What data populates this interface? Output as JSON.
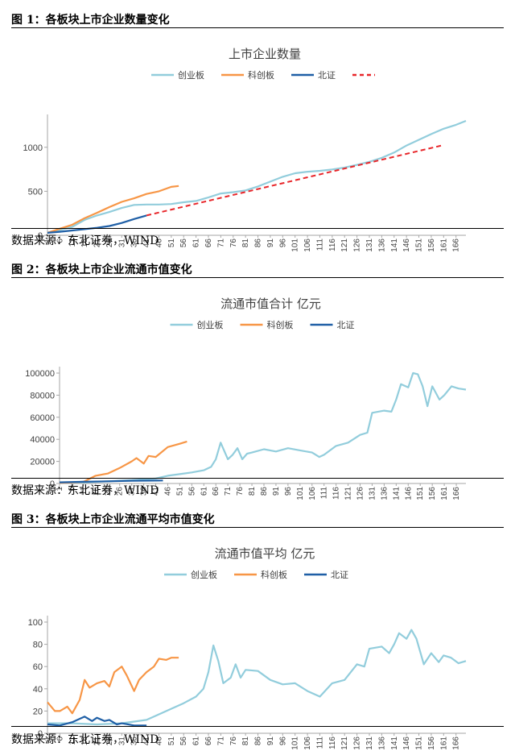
{
  "figures": [
    {
      "title": "图 1：各板块上市企业数量变化",
      "source": "数据来源：东北证券，WIND"
    },
    {
      "title": "图 2：各板块上市企业流通市值变化",
      "source": "数据来源：东北证券，WIND"
    },
    {
      "title": "图 3：各板块上市企业流通平均市值变化",
      "source": "数据来源：东北证券，WIND"
    }
  ],
  "chart_data": [
    {
      "type": "line",
      "title": "上市企业数量",
      "xticks": [
        "1",
        "6",
        "11",
        "16",
        "21",
        "26",
        "31",
        "36",
        "41",
        "46",
        "51",
        "56",
        "61",
        "66",
        "71",
        "76",
        "81",
        "86",
        "91",
        "96",
        "101",
        "106",
        "111",
        "116",
        "121",
        "126",
        "131",
        "136",
        "141",
        "146",
        "151",
        "156",
        "161",
        "166"
      ],
      "xlim": [
        1,
        170
      ],
      "ylim": [
        0,
        1300
      ],
      "yticks": [
        0,
        500,
        1000
      ],
      "grid": false,
      "legend": "top",
      "series": [
        {
          "name": "创业板",
          "color": "#92cddc",
          "dashed": false,
          "points": [
            [
              1,
              28
            ],
            [
              6,
              60
            ],
            [
              11,
              95
            ],
            [
              16,
              175
            ],
            [
              21,
              225
            ],
            [
              26,
              265
            ],
            [
              31,
              310
            ],
            [
              36,
              345
            ],
            [
              41,
              350
            ],
            [
              46,
              350
            ],
            [
              51,
              355
            ],
            [
              56,
              375
            ],
            [
              61,
              390
            ],
            [
              66,
              430
            ],
            [
              71,
              475
            ],
            [
              76,
              490
            ],
            [
              81,
              510
            ],
            [
              86,
              555
            ],
            [
              91,
              610
            ],
            [
              96,
              665
            ],
            [
              101,
              705
            ],
            [
              106,
              722
            ],
            [
              111,
              732
            ],
            [
              116,
              748
            ],
            [
              121,
              770
            ],
            [
              126,
              800
            ],
            [
              131,
              835
            ],
            [
              136,
              880
            ],
            [
              141,
              940
            ],
            [
              146,
              1020
            ],
            [
              151,
              1085
            ],
            [
              156,
              1150
            ],
            [
              161,
              1210
            ],
            [
              166,
              1255
            ],
            [
              170,
              1300
            ]
          ]
        },
        {
          "name": "科创板",
          "color": "#f79646",
          "dashed": false,
          "points": [
            [
              1,
              28
            ],
            [
              6,
              75
            ],
            [
              11,
              120
            ],
            [
              16,
              195
            ],
            [
              21,
              255
            ],
            [
              26,
              320
            ],
            [
              31,
              380
            ],
            [
              36,
              420
            ],
            [
              41,
              470
            ],
            [
              46,
              500
            ],
            [
              51,
              550
            ],
            [
              54,
              560
            ]
          ]
        },
        {
          "name": "北证",
          "color": "#1f5fa6",
          "dashed": false,
          "points": [
            [
              1,
              28
            ],
            [
              6,
              40
            ],
            [
              11,
              55
            ],
            [
              16,
              70
            ],
            [
              21,
              85
            ],
            [
              26,
              105
            ],
            [
              31,
              140
            ],
            [
              36,
              185
            ],
            [
              41,
              225
            ]
          ]
        },
        {
          "name": "",
          "color": "#e8262a",
          "dashed": true,
          "points": [
            [
              41,
              225
            ],
            [
              161,
              1025
            ]
          ]
        }
      ]
    },
    {
      "type": "line",
      "title": "流通市值合计 亿元",
      "xticks": [
        "1",
        "6",
        "11",
        "16",
        "21",
        "26",
        "31",
        "36",
        "41",
        "46",
        "51",
        "56",
        "61",
        "66",
        "71",
        "76",
        "81",
        "86",
        "91",
        "96",
        "101",
        "106",
        "111",
        "116",
        "121",
        "126",
        "131",
        "136",
        "141",
        "146",
        "151",
        "156",
        "161",
        "166"
      ],
      "xlim": [
        1,
        170
      ],
      "ylim": [
        0,
        100000
      ],
      "yticks": [
        0,
        20000,
        40000,
        60000,
        80000,
        100000
      ],
      "grid": false,
      "legend": "top",
      "series": [
        {
          "name": "创业板",
          "color": "#92cddc",
          "dashed": false,
          "points": [
            [
              1,
              500
            ],
            [
              11,
              1000
            ],
            [
              21,
              2000
            ],
            [
              31,
              3000
            ],
            [
              41,
              4500
            ],
            [
              46,
              7000
            ],
            [
              51,
              8500
            ],
            [
              56,
              10000
            ],
            [
              61,
              12000
            ],
            [
              64,
              15000
            ],
            [
              66,
              22000
            ],
            [
              68,
              37000
            ],
            [
              71,
              22000
            ],
            [
              73,
              26000
            ],
            [
              75,
              32000
            ],
            [
              77,
              22000
            ],
            [
              79,
              27000
            ],
            [
              81,
              28000
            ],
            [
              86,
              31000
            ],
            [
              91,
              29000
            ],
            [
              96,
              32000
            ],
            [
              101,
              30000
            ],
            [
              106,
              28000
            ],
            [
              109,
              24000
            ],
            [
              111,
              26000
            ],
            [
              116,
              34000
            ],
            [
              121,
              37000
            ],
            [
              126,
              44000
            ],
            [
              129,
              46000
            ],
            [
              131,
              64000
            ],
            [
              136,
              66000
            ],
            [
              139,
              65000
            ],
            [
              141,
              76000
            ],
            [
              143,
              90000
            ],
            [
              146,
              87000
            ],
            [
              148,
              100000
            ],
            [
              150,
              99000
            ],
            [
              152,
              88000
            ],
            [
              154,
              70000
            ],
            [
              156,
              88000
            ],
            [
              159,
              76000
            ],
            [
              161,
              80000
            ],
            [
              164,
              88000
            ],
            [
              167,
              86000
            ],
            [
              170,
              85000
            ]
          ]
        },
        {
          "name": "科创板",
          "color": "#f79646",
          "dashed": false,
          "points": [
            [
              1,
              500
            ],
            [
              6,
              900
            ],
            [
              11,
              1500
            ],
            [
              16,
              7000
            ],
            [
              21,
              9000
            ],
            [
              26,
              14000
            ],
            [
              31,
              20000
            ],
            [
              33,
              23000
            ],
            [
              36,
              18000
            ],
            [
              38,
              25000
            ],
            [
              41,
              24000
            ],
            [
              46,
              33000
            ],
            [
              51,
              36000
            ],
            [
              54,
              38000
            ]
          ]
        },
        {
          "name": "北证",
          "color": "#1f5fa6",
          "dashed": false,
          "points": [
            [
              1,
              1000
            ],
            [
              11,
              1500
            ],
            [
              21,
              2000
            ],
            [
              31,
              2500
            ],
            [
              41,
              2600
            ],
            [
              44,
              2700
            ]
          ]
        }
      ]
    },
    {
      "type": "line",
      "title": "流通市值平均 亿元",
      "xticks": [
        "1",
        "6",
        "11",
        "16",
        "21",
        "26",
        "31",
        "36",
        "41",
        "46",
        "51",
        "56",
        "61",
        "66",
        "71",
        "76",
        "81",
        "86",
        "91",
        "96",
        "101",
        "106",
        "111",
        "116",
        "121",
        "126",
        "131",
        "136",
        "141",
        "146",
        "151",
        "156",
        "161",
        "166"
      ],
      "xlim": [
        1,
        170
      ],
      "ylim": [
        0,
        100
      ],
      "yticks": [
        0,
        20,
        40,
        60,
        80,
        100
      ],
      "grid": false,
      "legend": "top",
      "series": [
        {
          "name": "创业板",
          "color": "#92cddc",
          "dashed": false,
          "points": [
            [
              1,
              9
            ],
            [
              11,
              9
            ],
            [
              21,
              8
            ],
            [
              31,
              9
            ],
            [
              41,
              12
            ],
            [
              46,
              17
            ],
            [
              51,
              22
            ],
            [
              56,
              27
            ],
            [
              61,
              33
            ],
            [
              64,
              40
            ],
            [
              66,
              55
            ],
            [
              68,
              79
            ],
            [
              70,
              65
            ],
            [
              72,
              45
            ],
            [
              75,
              50
            ],
            [
              77,
              62
            ],
            [
              79,
              50
            ],
            [
              81,
              57
            ],
            [
              86,
              56
            ],
            [
              91,
              48
            ],
            [
              96,
              44
            ],
            [
              101,
              45
            ],
            [
              106,
              38
            ],
            [
              111,
              33
            ],
            [
              116,
              45
            ],
            [
              121,
              48
            ],
            [
              126,
              62
            ],
            [
              129,
              60
            ],
            [
              131,
              76
            ],
            [
              136,
              78
            ],
            [
              139,
              72
            ],
            [
              141,
              80
            ],
            [
              143,
              90
            ],
            [
              146,
              85
            ],
            [
              148,
              93
            ],
            [
              150,
              85
            ],
            [
              153,
              62
            ],
            [
              156,
              72
            ],
            [
              159,
              64
            ],
            [
              161,
              70
            ],
            [
              164,
              68
            ],
            [
              167,
              63
            ],
            [
              170,
              65
            ]
          ]
        },
        {
          "name": "科创板",
          "color": "#f79646",
          "dashed": false,
          "points": [
            [
              1,
              28
            ],
            [
              4,
              20
            ],
            [
              6,
              20
            ],
            [
              9,
              24
            ],
            [
              11,
              18
            ],
            [
              14,
              30
            ],
            [
              16,
              48
            ],
            [
              18,
              41
            ],
            [
              21,
              45
            ],
            [
              24,
              47
            ],
            [
              26,
              42
            ],
            [
              28,
              55
            ],
            [
              31,
              60
            ],
            [
              33,
              52
            ],
            [
              36,
              38
            ],
            [
              38,
              48
            ],
            [
              41,
              55
            ],
            [
              44,
              60
            ],
            [
              46,
              67
            ],
            [
              49,
              66
            ],
            [
              51,
              68
            ],
            [
              54,
              68
            ]
          ]
        },
        {
          "name": "北证",
          "color": "#1f5fa6",
          "dashed": false,
          "points": [
            [
              1,
              8
            ],
            [
              6,
              7
            ],
            [
              11,
              10
            ],
            [
              16,
              15
            ],
            [
              19,
              11
            ],
            [
              21,
              14
            ],
            [
              24,
              11
            ],
            [
              26,
              12
            ],
            [
              29,
              8
            ],
            [
              31,
              9
            ],
            [
              36,
              7
            ],
            [
              41,
              7
            ]
          ]
        }
      ]
    }
  ]
}
